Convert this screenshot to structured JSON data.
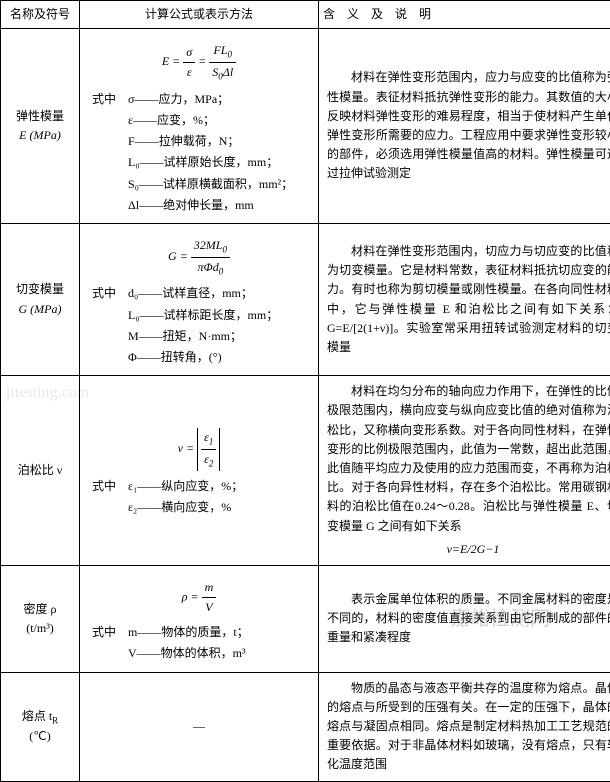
{
  "headers": {
    "name": "名称及符号",
    "formula": "计算公式或表示方法",
    "desc": "含　义　及　说　明"
  },
  "rows": [
    {
      "name_l1": "弹性模量",
      "name_l2": "E (MPa)",
      "formula_intro": "式中",
      "eq_lhs": "E = ",
      "eq_f1_num": "σ",
      "eq_f1_den": "ε",
      "eq_mid": " = ",
      "eq_f2_num": "FL",
      "eq_f2_num_sub": "0",
      "eq_f2_den": "S",
      "eq_f2_den_sub": "0",
      "eq_f2_den2": "Δl",
      "legend": [
        "σ——应力，MPa；",
        "ε——应变，%；",
        "F——拉伸载荷，N；",
        "L₀——试样原始长度，mm；",
        "S₀——试样原横截面积，mm²；",
        "Δl——绝对伸长量，mm"
      ],
      "desc": "材料在弹性变形范围内，应力与应变的比值称为弹性模量。表征材料抵抗弹性变形的能力。其数值的大小反映材料弹性变形的难易程度，相当于使材料产生单位弹性变形所需要的应力。工程应用中要求弹性变形较小的部件，必须选用弹性模量值高的材料。弹性模量可通过拉伸试验测定"
    },
    {
      "name_l1": "切变模量",
      "name_l2": "G (MPa)",
      "formula_intro": "式中",
      "eq_lhs": "G = ",
      "eq_num": "32ML",
      "eq_num_sub": "0",
      "eq_den": "πΦd",
      "eq_den_sub": "0",
      "legend": [
        "d₀——试样直径，mm；",
        "L₀——试样标距长度，mm；",
        "M——扭矩，N·mm；",
        "Φ——扭转角，(°)"
      ],
      "desc": "材料在弹性变形范围内，切应力与切应变的比值称为切变模量。它是材料常数，表征材料抵抗切应变的能力。有时也称为剪切模量或刚性模量。在各向同性材料中，它与弹性模量 E 和泊松比之间有如下关系：G=E/[2(1+ν)]。实验室常采用扭转试验测定材料的切变模量"
    },
    {
      "name_l1": "泊松比 ν",
      "name_l2": "",
      "formula_intro": "式中",
      "eq_lhs": "ν = ",
      "eq_abs_num": "ε",
      "eq_abs_num_sub": "1",
      "eq_abs_den": "ε",
      "eq_abs_den_sub": "2",
      "legend": [
        "ε₁——纵向应变，%；",
        "ε₂——横向应变，%"
      ],
      "desc": "材料在均匀分布的轴向应力作用下，在弹性的比例极限范围内，横向应变与纵向应变比值的绝对值称为泊松比，又称横向变形系数。对于各向同性材料，在弹性变形的比例极限范围内，此值为一常数，超出此范围，此值随平均应力及使用的应力范围而变，不再称为泊松比。对于各向异性材料，存在多个泊松比。常用碳钢材料的泊松比值在0.24～0.28。泊松比与弹性模量 E、切变模量 G 之间有如下关系",
      "desc_formula": "ν=E/2G−1"
    },
    {
      "name_l1": "密度 ρ",
      "name_l2": "(t/m³)",
      "formula_intro": "式中",
      "eq_lhs": "ρ = ",
      "eq_num": "m",
      "eq_den": "V",
      "legend": [
        "m——物体的质量，t；",
        "V——物体的体积，m³"
      ],
      "desc": "表示金属单位体积的质量。不同金属材料的密度是不同的，材料的密度值直接关系到由它所制成的部件的重量和紧凑程度"
    },
    {
      "name_l1": "熔点 t",
      "name_sub": "R",
      "name_l2": "(℃)",
      "formula_dash": "—",
      "desc": "物质的晶态与液态平衡共存的温度称为熔点。晶体的熔点与所受到的压强有关。在一定的压强下，晶体的熔点与凝固点相同。熔点是制定材料热加工工艺规范的重要依据。对于非晶体材料如玻璃，没有熔点，只有软化温度范围"
    }
  ],
  "watermark1": "jttesting.com",
  "watermark2": "嘉峪检测网"
}
